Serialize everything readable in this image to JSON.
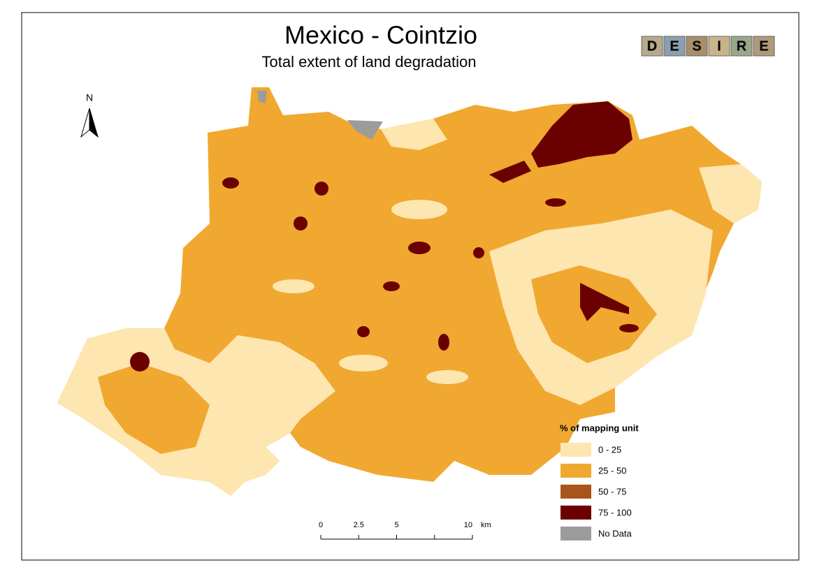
{
  "map": {
    "title": "Mexico - Cointzio",
    "subtitle": "Total extent of land degradation",
    "north_label": "N",
    "logo_letters": [
      "D",
      "E",
      "S",
      "I",
      "R",
      "E"
    ],
    "legend": {
      "title": "% of mapping unit",
      "items": [
        {
          "label": "0 - 25",
          "color": "#fde6b0"
        },
        {
          "label": "25 - 50",
          "color": "#f0a830"
        },
        {
          "label": "50 - 75",
          "color": "#a9541a"
        },
        {
          "label": "75 - 100",
          "color": "#6b0000"
        },
        {
          "label": "No Data",
          "color": "#9c9c9c"
        }
      ]
    },
    "scale_bar": {
      "ticks": [
        0,
        2.5,
        5,
        10
      ],
      "unit": "km"
    }
  }
}
